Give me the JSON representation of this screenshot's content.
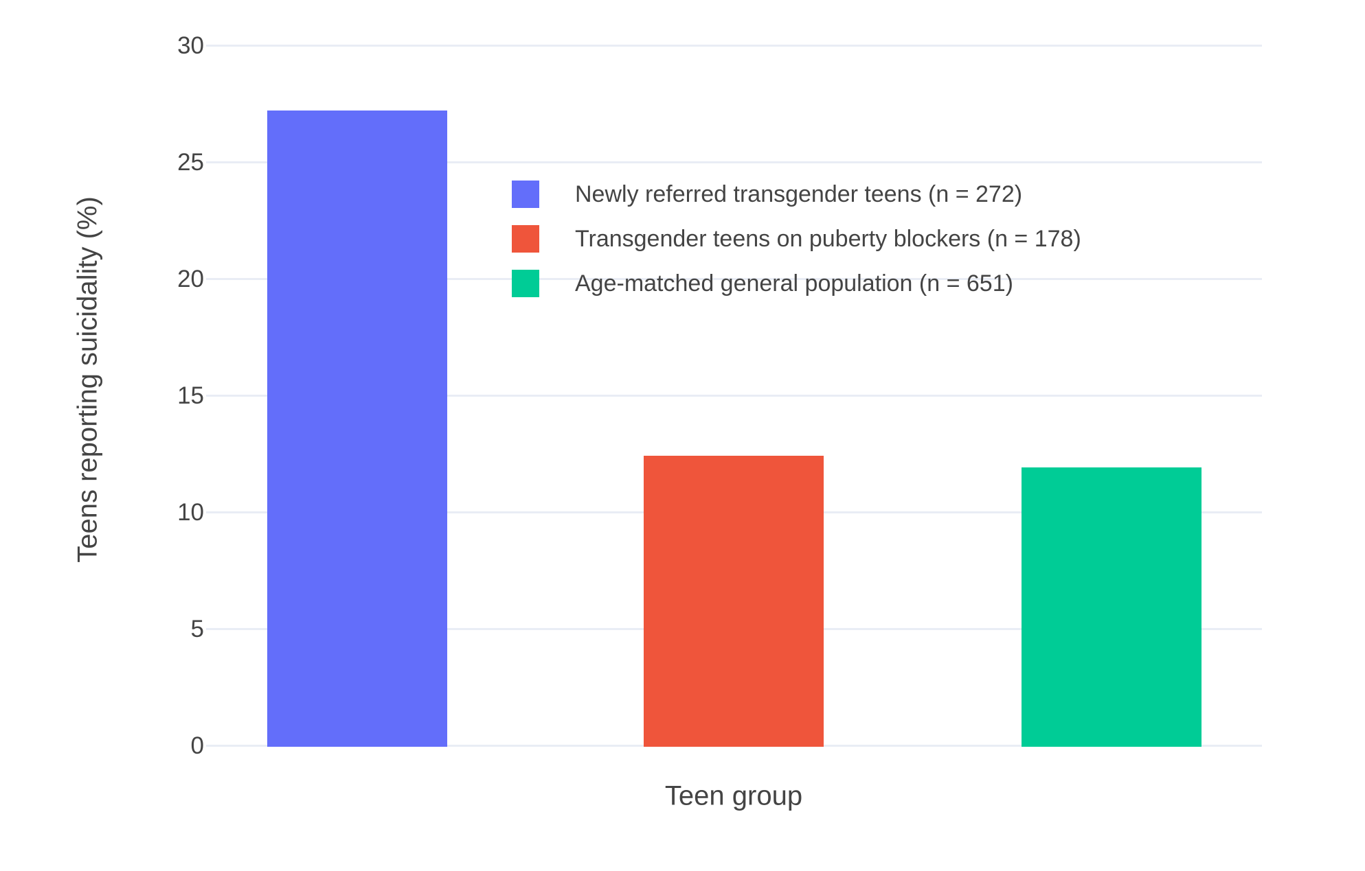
{
  "chart_data": {
    "type": "bar",
    "title": "",
    "xlabel": "Teen group",
    "ylabel": "Teens reporting suicidality (%)",
    "ylim": [
      0,
      30
    ],
    "yticks": [
      0,
      5,
      10,
      15,
      20,
      25,
      30
    ],
    "grid": true,
    "legend_position": "inside-top-center",
    "x_tick_labels_visible": false,
    "series": [
      {
        "name": "Newly referred transgender teens (n = 272)",
        "value": 27.2,
        "color": "#636EFA",
        "slug": "newly-referred-transgender-teens"
      },
      {
        "name": "Transgender teens on puberty blockers (n = 178)",
        "value": 12.4,
        "color": "#EF553B",
        "slug": "transgender-teens-on-puberty-blockers"
      },
      {
        "name": "Age-matched general population (n = 651)",
        "value": 11.9,
        "color": "#00CC96",
        "slug": "age-matched-general-population"
      }
    ],
    "style": {
      "background_color": "#FFFFFF",
      "gridline_color": "#E9EDF5",
      "text_color": "#444444"
    }
  }
}
